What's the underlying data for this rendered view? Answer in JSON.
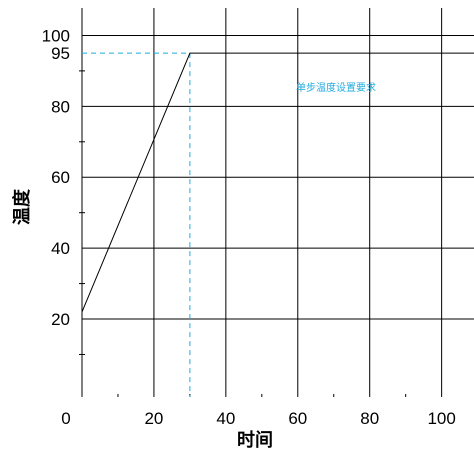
{
  "chart_data": {
    "type": "line",
    "title": "",
    "xlabel": "时间",
    "ylabel": "温度",
    "xlim": [
      0,
      109
    ],
    "ylim": [
      -2,
      110
    ],
    "grid": true,
    "x_ticks": [
      0,
      20,
      40,
      60,
      80,
      100
    ],
    "y_ticks": [
      20,
      40,
      60,
      80,
      100
    ],
    "series": [
      {
        "x": [
          0,
          30,
          109
        ],
        "y": [
          22,
          95,
          95
        ]
      }
    ],
    "reference": {
      "label": "95",
      "x": 30,
      "y": 95,
      "style": "dashed",
      "color": "#22aadd"
    },
    "annotation": {
      "text": "单步温度设置要求",
      "color": "#22aadd"
    },
    "line_color": "#000000"
  }
}
